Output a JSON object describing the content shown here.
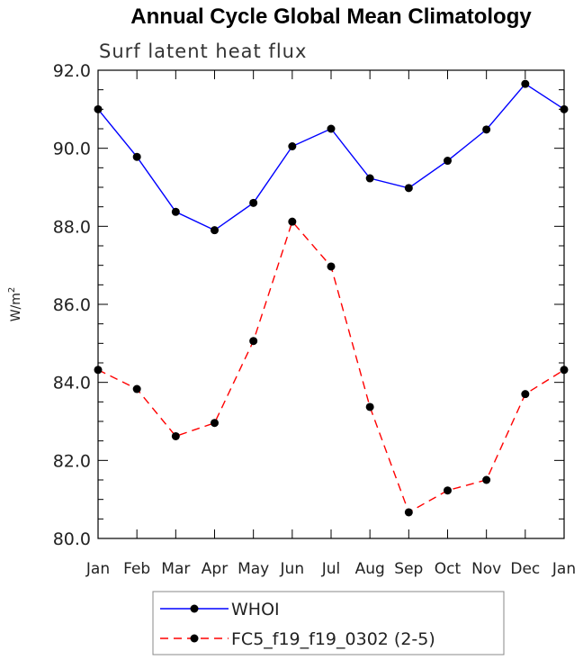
{
  "chart_data": {
    "type": "line",
    "title": "Annual Cycle Global Mean Climatology",
    "subtitle": "Surf latent heat flux",
    "ylabel": "W/m",
    "ylabel_superscript": "2",
    "xlabel": "",
    "categories": [
      "Jan",
      "Feb",
      "Mar",
      "Apr",
      "May",
      "Jun",
      "Jul",
      "Aug",
      "Sep",
      "Oct",
      "Nov",
      "Dec",
      "Jan"
    ],
    "ylim": [
      80.0,
      92.0
    ],
    "yticks": [
      "80.0",
      "82.0",
      "84.0",
      "86.0",
      "88.0",
      "90.0",
      "92.0"
    ],
    "series": [
      {
        "name": "WHOI",
        "color": "#0000ff",
        "dash": "solid",
        "values": [
          91.0,
          89.78,
          88.37,
          87.9,
          88.6,
          90.05,
          90.5,
          89.23,
          88.98,
          89.68,
          90.48,
          91.65,
          91.0
        ]
      },
      {
        "name": "FC5_f19_f19_0302 (2-5)",
        "color": "#ff0000",
        "dash": "dashed",
        "values": [
          84.32,
          83.83,
          82.62,
          82.96,
          85.06,
          88.12,
          86.97,
          83.37,
          80.67,
          81.23,
          81.5,
          83.7,
          84.32
        ]
      }
    ],
    "grid": false,
    "legend_position": "bottom-center"
  }
}
